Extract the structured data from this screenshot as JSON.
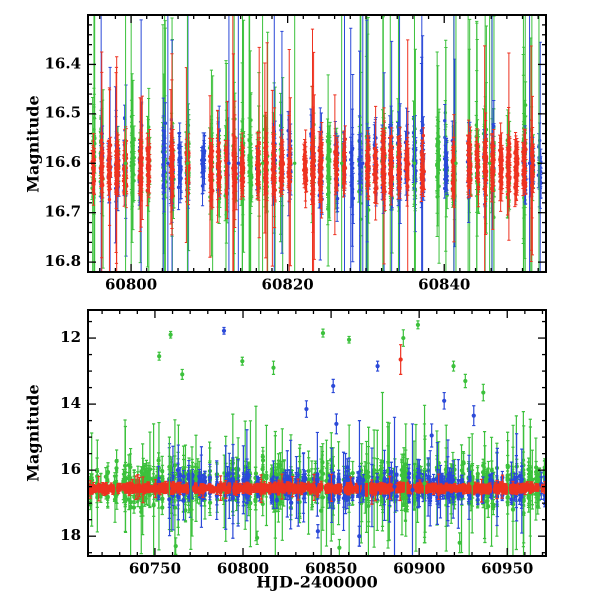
{
  "figure": {
    "background": "#ffffff",
    "axis_color": "#000000",
    "xlabel": "HJD-2400000",
    "ylabel": "Magnitude",
    "series_colors": {
      "green": "#3cc13c",
      "blue": "#2b49d8",
      "red": "#ee3220"
    }
  },
  "chart_data": [
    {
      "type": "scatter",
      "panel": "top",
      "title": "",
      "xlabel": "",
      "ylabel": "Magnitude",
      "xlim": [
        60794.5,
        60853.0
      ],
      "ylim": [
        16.3,
        16.82
      ],
      "y_inverted": true,
      "grid": false,
      "legend": "none",
      "marker_radius": 1.7,
      "errbar_width": 1.0,
      "xticks": {
        "major": [
          60800,
          60820,
          60840
        ],
        "labels": [
          "60800",
          "60820",
          "60840"
        ],
        "minor_step": 2
      },
      "yticks": {
        "major": [
          16.4,
          16.5,
          16.6,
          16.7,
          16.8
        ],
        "labels": [
          "16.4",
          "16.5",
          "16.6",
          "16.7",
          "16.8"
        ],
        "minor_step": 0.02
      },
      "series": [
        {
          "name": "green-band",
          "color": "#3cc13c",
          "seed": 11,
          "n": 800,
          "night_prob": 0.6,
          "mag": 16.6,
          "sigma": 0.035,
          "err": 0.04,
          "big_err_frac": 0.1,
          "big_err_scale": 8
        },
        {
          "name": "blue-band",
          "color": "#2b49d8",
          "seed": 22,
          "n": 480,
          "night_prob": 0.45,
          "mag": 16.6,
          "sigma": 0.03,
          "err": 0.035,
          "big_err_frac": 0.08,
          "big_err_scale": 8
        },
        {
          "name": "red-band",
          "color": "#ee3220",
          "seed": 33,
          "n": 1000,
          "night_prob": 0.75,
          "mag": 16.61,
          "sigma": 0.022,
          "err": 0.028,
          "big_err_frac": 0.05,
          "big_err_scale": 7
        }
      ],
      "spikes": [
        {
          "x": 60799.3,
          "err": 0.6,
          "series": "green-band"
        },
        {
          "x": 60804.7,
          "err": 0.6,
          "series": "blue-band"
        },
        {
          "x": 60807.2,
          "err": 0.6,
          "series": "green-band"
        },
        {
          "x": 60812.5,
          "err": 0.6,
          "series": "blue-band"
        },
        {
          "x": 60813.0,
          "err": 0.6,
          "series": "red-band"
        },
        {
          "x": 60813.7,
          "err": 0.6,
          "series": "blue-band"
        },
        {
          "x": 60816.8,
          "err": 0.6,
          "series": "green-band"
        },
        {
          "x": 60820.9,
          "err": 0.6,
          "series": "green-band"
        },
        {
          "x": 60826.9,
          "err": 0.6,
          "series": "green-band"
        },
        {
          "x": 60829.6,
          "err": 0.6,
          "series": "blue-band"
        },
        {
          "x": 60836.2,
          "err": 0.6,
          "series": "green-band"
        },
        {
          "x": 60841.5,
          "err": 0.6,
          "series": "green-band"
        },
        {
          "x": 60845.8,
          "err": 0.6,
          "series": "green-band"
        },
        {
          "x": 60850.9,
          "err": 0.6,
          "series": "blue-band"
        },
        {
          "x": 60852.1,
          "err": 0.6,
          "series": "green-band"
        }
      ],
      "outliers": []
    },
    {
      "type": "scatter",
      "panel": "bottom",
      "title": "",
      "xlabel": "HJD-2400000",
      "ylabel": "Magnitude",
      "xlim": [
        60712,
        60972
      ],
      "ylim": [
        11.15,
        18.6
      ],
      "y_inverted": true,
      "grid": false,
      "legend": "none",
      "marker_radius": 2.1,
      "errbar_width": 1.2,
      "xticks": {
        "major": [
          60750,
          60800,
          60850,
          60900,
          60950
        ],
        "labels": [
          "60750",
          "60800",
          "60850",
          "60900",
          "60950"
        ],
        "minor_step": 10
      },
      "yticks": {
        "major": [
          12,
          14,
          16,
          18
        ],
        "labels": [
          "12",
          "14",
          "16",
          "18"
        ],
        "minor_step": 0.5
      },
      "series": [
        {
          "name": "green-band",
          "color": "#3cc13c",
          "seed": 44,
          "n": 950,
          "night_prob": 0.5,
          "mag": 16.45,
          "sigma": 0.28,
          "err": 0.3,
          "big_err_frac": 0.1,
          "big_err_scale": 5
        },
        {
          "name": "blue-band",
          "color": "#2b49d8",
          "seed": 55,
          "n": 650,
          "night_prob": 0.4,
          "mag": 16.5,
          "sigma": 0.16,
          "err": 0.2,
          "big_err_frac": 0.08,
          "big_err_scale": 5,
          "x_start": 60750
        },
        {
          "name": "red-band",
          "color": "#ee3220",
          "seed": 66,
          "n": 1300,
          "night_prob": 0.8,
          "mag": 16.55,
          "sigma": 0.05,
          "err": 0.07,
          "big_err_frac": 0.03,
          "big_err_scale": 4
        }
      ],
      "spikes": [
        {
          "x": 60758.2,
          "y": 15.9,
          "err": 0.9,
          "series": "green-band"
        },
        {
          "x": 60770.4,
          "y": 17.2,
          "err": 1.2,
          "series": "green-band"
        },
        {
          "x": 60866.1,
          "y": 16.4,
          "err": 1.9,
          "series": "blue-band"
        },
        {
          "x": 60871.3,
          "y": 16.2,
          "err": 1.5,
          "series": "green-band"
        },
        {
          "x": 60886.0,
          "y": 16.5,
          "err": 2.1,
          "series": "blue-band"
        },
        {
          "x": 60892.4,
          "y": 16.3,
          "err": 1.7,
          "series": "green-band"
        },
        {
          "x": 60896.2,
          "y": 16.6,
          "err": 2.0,
          "series": "blue-band"
        },
        {
          "x": 60903.0,
          "y": 16.4,
          "err": 1.8,
          "series": "green-band"
        },
        {
          "x": 60930.1,
          "y": 16.4,
          "err": 1.5,
          "series": "green-band"
        }
      ],
      "outliers": [
        {
          "x": 60752.4,
          "y": 12.55,
          "err": 0.12,
          "series": "green-band"
        },
        {
          "x": 60758.9,
          "y": 11.9,
          "err": 0.1,
          "series": "green-band"
        },
        {
          "x": 60765.5,
          "y": 13.1,
          "err": 0.15,
          "series": "green-band"
        },
        {
          "x": 60799.6,
          "y": 12.7,
          "err": 0.12,
          "series": "green-band"
        },
        {
          "x": 60817.3,
          "y": 12.9,
          "err": 0.2,
          "series": "green-band"
        },
        {
          "x": 60845.4,
          "y": 11.85,
          "err": 0.12,
          "series": "green-band"
        },
        {
          "x": 60860.2,
          "y": 12.05,
          "err": 0.1,
          "series": "green-band"
        },
        {
          "x": 60891.0,
          "y": 12.0,
          "err": 0.25,
          "series": "green-band"
        },
        {
          "x": 60899.3,
          "y": 11.6,
          "err": 0.12,
          "series": "green-band"
        },
        {
          "x": 60919.5,
          "y": 12.85,
          "err": 0.15,
          "series": "green-band"
        },
        {
          "x": 60926.2,
          "y": 13.3,
          "err": 0.2,
          "series": "green-band"
        },
        {
          "x": 60936.4,
          "y": 13.65,
          "err": 0.25,
          "series": "green-band"
        },
        {
          "x": 60761.8,
          "y": 18.3,
          "err": 0.25,
          "series": "green-band"
        },
        {
          "x": 60808.0,
          "y": 18.05,
          "err": 0.2,
          "series": "green-band"
        },
        {
          "x": 60854.7,
          "y": 18.35,
          "err": 0.25,
          "series": "green-band"
        },
        {
          "x": 60923.0,
          "y": 18.2,
          "err": 0.3,
          "series": "green-band"
        },
        {
          "x": 60789.2,
          "y": 11.78,
          "err": 0.1,
          "series": "blue-band"
        },
        {
          "x": 60836.0,
          "y": 14.15,
          "err": 0.25,
          "series": "blue-band"
        },
        {
          "x": 60851.2,
          "y": 13.45,
          "err": 0.2,
          "series": "blue-band"
        },
        {
          "x": 60853.0,
          "y": 14.6,
          "err": 0.3,
          "series": "blue-band"
        },
        {
          "x": 60876.4,
          "y": 12.85,
          "err": 0.15,
          "series": "blue-band"
        },
        {
          "x": 60907.1,
          "y": 14.95,
          "err": 0.35,
          "series": "blue-band"
        },
        {
          "x": 60914.2,
          "y": 13.9,
          "err": 0.25,
          "series": "blue-band"
        },
        {
          "x": 60931.0,
          "y": 14.35,
          "err": 0.3,
          "series": "blue-band"
        },
        {
          "x": 60842.5,
          "y": 17.85,
          "err": 0.2,
          "series": "blue-band"
        },
        {
          "x": 60866.0,
          "y": 18.0,
          "err": 0.3,
          "series": "blue-band"
        },
        {
          "x": 60889.5,
          "y": 12.65,
          "err": 0.45,
          "series": "red-band"
        }
      ]
    }
  ]
}
